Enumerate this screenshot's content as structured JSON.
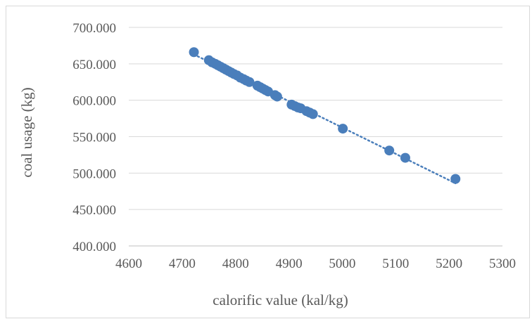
{
  "chart_data": {
    "type": "scatter",
    "title": "",
    "xlabel": "calorific value (kal/kg)",
    "ylabel": "coal usage (kg)",
    "xlim": [
      4600,
      5300
    ],
    "ylim": [
      400,
      700
    ],
    "x_ticks": [
      "4600",
      "4700",
      "4800",
      "4900",
      "5000",
      "5100",
      "5200",
      "5300"
    ],
    "y_ticks": [
      "400.000",
      "450.000",
      "500.000",
      "550.000",
      "600.000",
      "650.000",
      "700.000"
    ],
    "grid": "horizontal",
    "trendline": "dotted linear",
    "marker_color": "#4a7ebb",
    "series": [
      {
        "x": [
          4722,
          4750,
          4756,
          4762,
          4767,
          4772,
          4777,
          4782,
          4787,
          4792,
          4797,
          4803,
          4809,
          4815,
          4820,
          4826,
          4841,
          4846,
          4851,
          4856,
          4861,
          4874,
          4878,
          4905,
          4911,
          4917,
          4922,
          4933,
          4939,
          4945,
          5001,
          5088,
          5118,
          5212
        ],
        "y": [
          666,
          655,
          652,
          650,
          648,
          646,
          644,
          642,
          640,
          638,
          636,
          634,
          631,
          629,
          627,
          625,
          620,
          618,
          616,
          614,
          612,
          607,
          605,
          594,
          592,
          590,
          589,
          585,
          583,
          581,
          561,
          531,
          521,
          492
        ]
      }
    ]
  }
}
